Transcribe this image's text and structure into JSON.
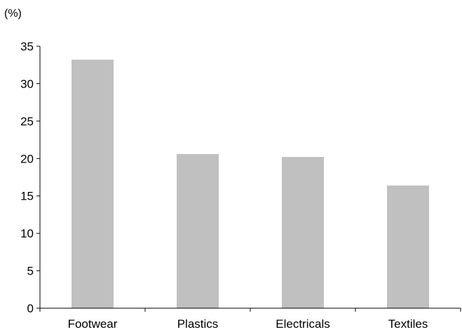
{
  "chart_data": {
    "type": "bar",
    "title": "",
    "xlabel": "",
    "ylabel": "(%)",
    "categories": [
      "Footwear",
      "Plastics",
      "Electricals",
      "Textiles"
    ],
    "values": [
      33.2,
      20.6,
      20.2,
      16.4
    ],
    "ylim": [
      0,
      35
    ],
    "yticks": [
      0,
      5,
      10,
      15,
      20,
      25,
      30,
      35
    ],
    "grid": false,
    "legend": "none",
    "bar_color": "#c0c0c0",
    "axis_color": "#000000"
  }
}
